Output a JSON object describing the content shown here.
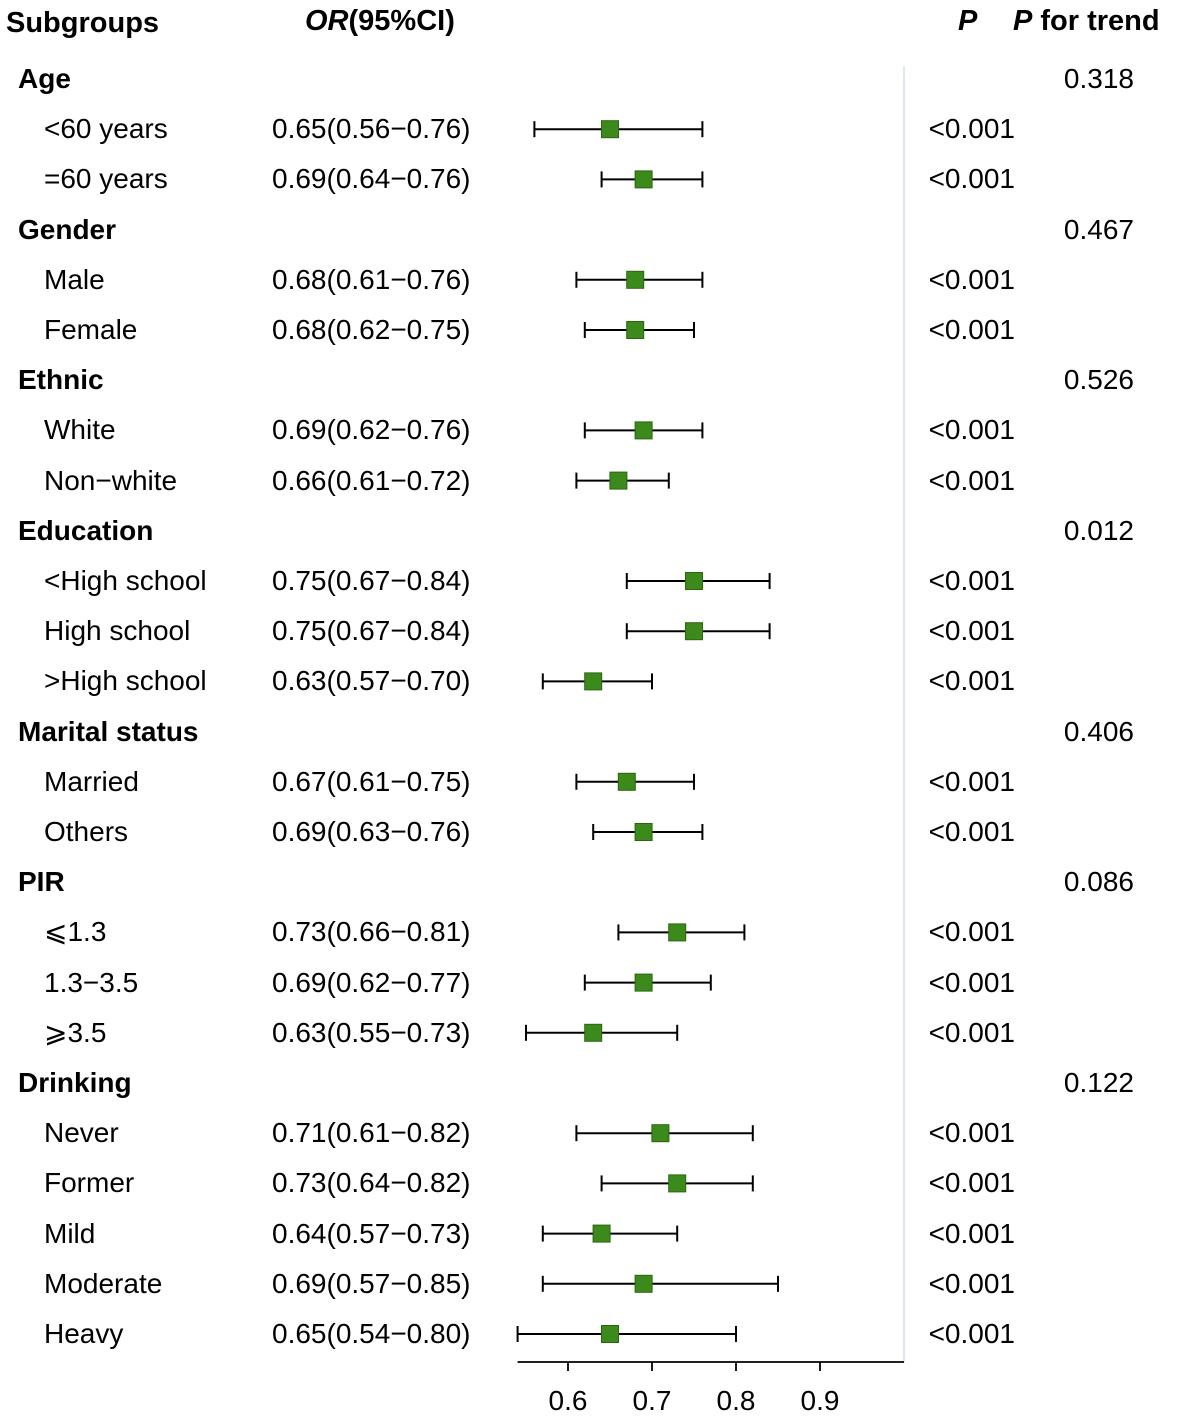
{
  "chart_data": {
    "type": "forest",
    "headers": {
      "subgroups": "Subgroups",
      "or_italic": "OR",
      "or_rest": "(95%CI)",
      "p": "P",
      "p_trend_italic": "P",
      "p_trend_rest": " for trend"
    },
    "rows": [
      {
        "kind": "group",
        "label": "Age",
        "p_trend": "0.318"
      },
      {
        "kind": "item",
        "label": "<60 years",
        "or_text": "0.65(0.56−0.76)",
        "or": 0.65,
        "lower": 0.56,
        "upper": 0.76,
        "p": "<0.001"
      },
      {
        "kind": "item",
        "label": "=60 years",
        "or_text": "0.69(0.64−0.76)",
        "or": 0.69,
        "lower": 0.64,
        "upper": 0.76,
        "p": "<0.001"
      },
      {
        "kind": "group",
        "label": "Gender",
        "p_trend": "0.467"
      },
      {
        "kind": "item",
        "label": "Male",
        "or_text": "0.68(0.61−0.76)",
        "or": 0.68,
        "lower": 0.61,
        "upper": 0.76,
        "p": "<0.001"
      },
      {
        "kind": "item",
        "label": "Female",
        "or_text": "0.68(0.62−0.75)",
        "or": 0.68,
        "lower": 0.62,
        "upper": 0.75,
        "p": "<0.001"
      },
      {
        "kind": "group",
        "label": "Ethnic",
        "p_trend": "0.526"
      },
      {
        "kind": "item",
        "label": "White",
        "or_text": "0.69(0.62−0.76)",
        "or": 0.69,
        "lower": 0.62,
        "upper": 0.76,
        "p": "<0.001"
      },
      {
        "kind": "item",
        "label": "Non−white",
        "or_text": "0.66(0.61−0.72)",
        "or": 0.66,
        "lower": 0.61,
        "upper": 0.72,
        "p": "<0.001"
      },
      {
        "kind": "group",
        "label": "Education",
        "p_trend": "0.012"
      },
      {
        "kind": "item",
        "label": "<High school",
        "or_text": "0.75(0.67−0.84)",
        "or": 0.75,
        "lower": 0.67,
        "upper": 0.84,
        "p": "<0.001"
      },
      {
        "kind": "item",
        "label": "High school",
        "or_text": "0.75(0.67−0.84)",
        "or": 0.75,
        "lower": 0.67,
        "upper": 0.84,
        "p": "<0.001"
      },
      {
        "kind": "item",
        "label": ">High school",
        "or_text": "0.63(0.57−0.70)",
        "or": 0.63,
        "lower": 0.57,
        "upper": 0.7,
        "p": "<0.001"
      },
      {
        "kind": "group",
        "label": "Marital status",
        "p_trend": "0.406"
      },
      {
        "kind": "item",
        "label": "Married",
        "or_text": "0.67(0.61−0.75)",
        "or": 0.67,
        "lower": 0.61,
        "upper": 0.75,
        "p": "<0.001"
      },
      {
        "kind": "item",
        "label": "Others",
        "or_text": "0.69(0.63−0.76)",
        "or": 0.69,
        "lower": 0.63,
        "upper": 0.76,
        "p": "<0.001"
      },
      {
        "kind": "group",
        "label": "PIR",
        "p_trend": "0.086"
      },
      {
        "kind": "item",
        "label": "⩽1.3",
        "or_text": "0.73(0.66−0.81)",
        "or": 0.73,
        "lower": 0.66,
        "upper": 0.81,
        "p": "<0.001"
      },
      {
        "kind": "item",
        "label": "1.3−3.5",
        "or_text": "0.69(0.62−0.77)",
        "or": 0.69,
        "lower": 0.62,
        "upper": 0.77,
        "p": "<0.001"
      },
      {
        "kind": "item",
        "label": "⩾3.5",
        "or_text": "0.63(0.55−0.73)",
        "or": 0.63,
        "lower": 0.55,
        "upper": 0.73,
        "p": "<0.001"
      },
      {
        "kind": "group",
        "label": "Drinking",
        "p_trend": "0.122"
      },
      {
        "kind": "item",
        "label": "Never",
        "or_text": "0.71(0.61−0.82)",
        "or": 0.71,
        "lower": 0.61,
        "upper": 0.82,
        "p": "<0.001"
      },
      {
        "kind": "item",
        "label": "Former",
        "or_text": "0.73(0.64−0.82)",
        "or": 0.73,
        "lower": 0.64,
        "upper": 0.82,
        "p": "<0.001"
      },
      {
        "kind": "item",
        "label": "Mild",
        "or_text": "0.64(0.57−0.73)",
        "or": 0.64,
        "lower": 0.57,
        "upper": 0.73,
        "p": "<0.001"
      },
      {
        "kind": "item",
        "label": "Moderate",
        "or_text": "0.69(0.57−0.85)",
        "or": 0.69,
        "lower": 0.57,
        "upper": 0.85,
        "p": "<0.001"
      },
      {
        "kind": "item",
        "label": "Heavy",
        "or_text": "0.65(0.54−0.80)",
        "or": 0.65,
        "lower": 0.54,
        "upper": 0.8,
        "p": "<0.001"
      }
    ],
    "x_axis": {
      "range": [
        0.54,
        1.0
      ],
      "ticks": [
        0.6,
        0.7,
        0.8,
        0.9
      ],
      "tick_labels": [
        "0.6",
        "0.7",
        "0.8",
        "0.9"
      ],
      "reference_line": 1.0
    },
    "colors": {
      "marker": "#3d8a1c",
      "marker_edge": "#2a6610",
      "ci_line": "#000000",
      "reference_line": "#cfe3ea"
    }
  }
}
